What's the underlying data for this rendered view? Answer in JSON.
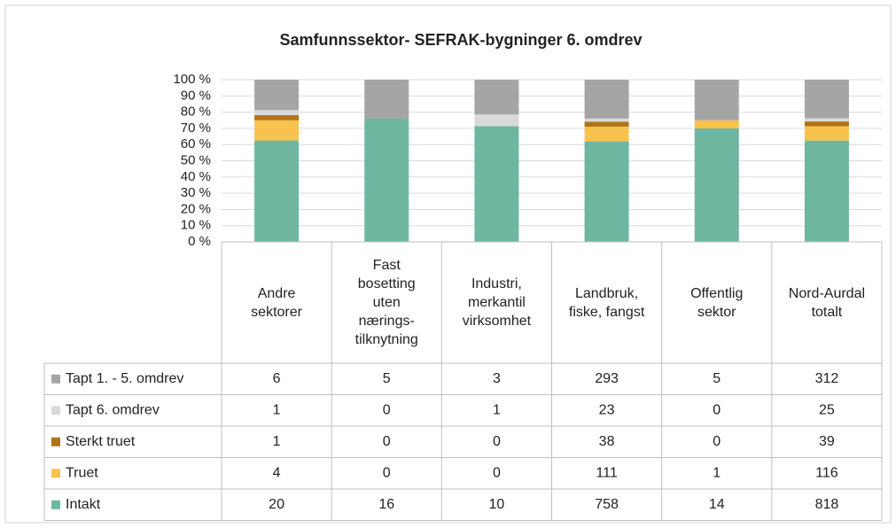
{
  "chart_data": {
    "type": "bar",
    "stacked": "percent",
    "title": "Samfunnssektor- SEFRAK-bygninger 6. omdrev",
    "categories": [
      "Andre sektorer",
      "Fast bosetting uten nærings-tilknytning",
      "Industri, merkantil virksomhet",
      "Landbruk, fiske, fangst",
      "Offentlig sektor",
      "Nord-Aurdal totalt"
    ],
    "series": [
      {
        "name": "Tapt 1. - 5. omdrev",
        "color": "#a5a5a5",
        "values": [
          6,
          5,
          3,
          293,
          5,
          312
        ]
      },
      {
        "name": "Tapt 6. omdrev",
        "color": "#d9d9d9",
        "values": [
          1,
          0,
          1,
          23,
          0,
          25
        ]
      },
      {
        "name": "Sterkt truet",
        "color": "#b07418",
        "values": [
          1,
          0,
          0,
          38,
          0,
          39
        ]
      },
      {
        "name": "Truet",
        "color": "#f8c24e",
        "values": [
          4,
          0,
          0,
          111,
          1,
          116
        ]
      },
      {
        "name": "Intakt",
        "color": "#6fb6a0",
        "values": [
          20,
          16,
          10,
          758,
          14,
          818
        ]
      }
    ],
    "ylim": [
      0,
      100
    ],
    "yticks": [
      {
        "value": 0,
        "label": "0 %"
      },
      {
        "value": 10,
        "label": "10 %"
      },
      {
        "value": 20,
        "label": "20 %"
      },
      {
        "value": 30,
        "label": "30 %"
      },
      {
        "value": 40,
        "label": "40 %"
      },
      {
        "value": 50,
        "label": "50 %"
      },
      {
        "value": 60,
        "label": "60 %"
      },
      {
        "value": 70,
        "label": "70 %"
      },
      {
        "value": 80,
        "label": "80 %"
      },
      {
        "value": 90,
        "label": "90 %"
      },
      {
        "value": 100,
        "label": "100 %"
      }
    ],
    "grid": true
  }
}
